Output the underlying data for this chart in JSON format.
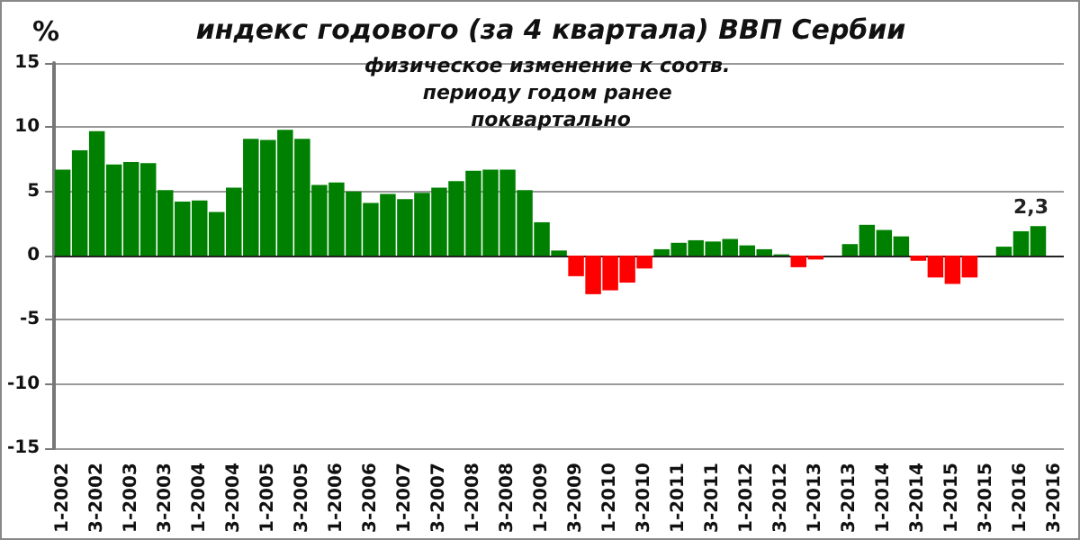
{
  "chart_data": {
    "type": "bar",
    "title": "индекс годового (за 4 квартала) ВВП Сербии",
    "subtitle": "физическое изменение к соотв. периоду годом ранее поквартально",
    "ylabel": "%",
    "categories": [
      "1-2002",
      null,
      "3-2002",
      null,
      "1-2003",
      null,
      "3-2003",
      null,
      "1-2004",
      null,
      "3-2004",
      null,
      "1-2005",
      null,
      "3-2005",
      null,
      "1-2006",
      null,
      "3-2006",
      null,
      "1-2007",
      null,
      "3-2007",
      null,
      "1-2008",
      null,
      "3-2008",
      null,
      "1-2009",
      null,
      "3-2009",
      null,
      "1-2010",
      null,
      "3-2010",
      null,
      "1-2011",
      null,
      "3-2011",
      null,
      "1-2012",
      null,
      "3-2012",
      null,
      "1-2013",
      null,
      "3-2013",
      null,
      "1-2014",
      null,
      "3-2014",
      null,
      "1-2015",
      null,
      "3-2015",
      null,
      "1-2016",
      null,
      "3-2016"
    ],
    "values": [
      6.7,
      8.2,
      9.7,
      7.1,
      7.3,
      7.2,
      5.1,
      4.2,
      4.3,
      3.4,
      5.3,
      9.1,
      9.0,
      9.8,
      9.1,
      5.5,
      5.7,
      5.0,
      4.1,
      4.8,
      4.4,
      4.9,
      5.3,
      5.8,
      6.6,
      6.7,
      6.7,
      5.1,
      2.6,
      0.4,
      -1.6,
      -3.0,
      -2.7,
      -2.1,
      -1.0,
      0.5,
      1.0,
      1.2,
      1.1,
      1.3,
      0.8,
      0.5,
      0.1,
      -0.9,
      -0.3,
      0,
      0.9,
      2.4,
      2.0,
      1.5,
      -0.4,
      -1.7,
      -2.2,
      -1.7,
      0,
      0.7,
      1.9,
      2.3,
      null
    ],
    "colors": [
      "#008000",
      "#008000",
      "#008000",
      "#008000",
      "#008000",
      "#008000",
      "#008000",
      "#008000",
      "#008000",
      "#008000",
      "#008000",
      "#008000",
      "#008000",
      "#008000",
      "#008000",
      "#008000",
      "#008000",
      "#008000",
      "#008000",
      "#008000",
      "#008000",
      "#008000",
      "#008000",
      "#008000",
      "#008000",
      "#008000",
      "#008000",
      "#008000",
      "#008000",
      "#008000",
      "#ff0000",
      "#ff0000",
      "#ff0000",
      "#ff0000",
      "#ff0000",
      "#008000",
      "#008000",
      "#008000",
      "#008000",
      "#008000",
      "#008000",
      "#008000",
      "#008000",
      "#ff0000",
      "#ff0000",
      "#008000",
      "#008000",
      "#008000",
      "#008000",
      "#008000",
      "#ff0000",
      "#ff0000",
      "#ff0000",
      "#ff0000",
      "#008000",
      "#008000",
      "#008000",
      "#008000",
      null
    ],
    "value_labels": [
      null,
      null,
      null,
      null,
      null,
      null,
      null,
      null,
      null,
      null,
      null,
      null,
      null,
      null,
      null,
      null,
      null,
      null,
      null,
      null,
      null,
      null,
      null,
      null,
      null,
      null,
      null,
      null,
      null,
      null,
      null,
      null,
      null,
      null,
      null,
      null,
      null,
      null,
      null,
      null,
      null,
      null,
      null,
      null,
      null,
      null,
      null,
      null,
      null,
      null,
      null,
      null,
      null,
      null,
      null,
      null,
      null,
      "2,3",
      null
    ],
    "ylim": [
      -15,
      15
    ],
    "yticks": [
      -15,
      -10,
      -5,
      0,
      5,
      10,
      15
    ],
    "grid": "y"
  }
}
